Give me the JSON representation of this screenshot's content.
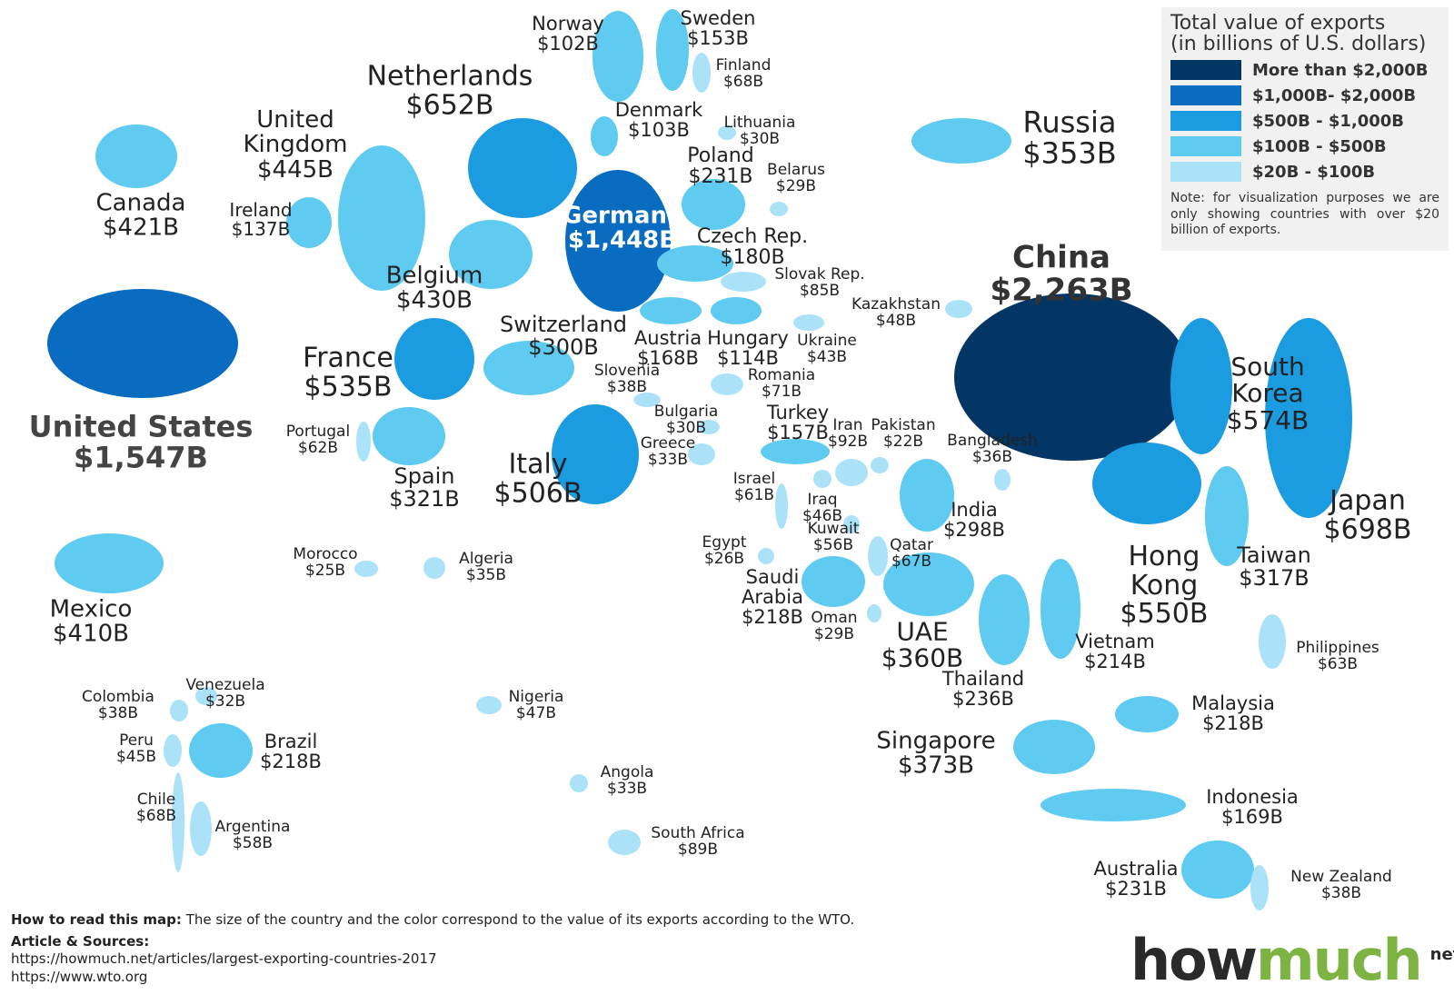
{
  "legend": {
    "title": "Total value of exports",
    "subtitle": "(in billions of U.S. dollars)",
    "items": [
      {
        "label": "More than $2,000B",
        "color": "#033565"
      },
      {
        "label": "$1,000B- $2,000B",
        "color": "#0a6cc0"
      },
      {
        "label": "$500B - $1,000B",
        "color": "#1b9be0"
      },
      {
        "label": "$100B - $500B",
        "color": "#5fcbf1"
      },
      {
        "label": "$20B - $100B",
        "color": "#ace2f8"
      }
    ],
    "note": "Note: for visualization purposes we are only showing countries with over $20 billion of exports."
  },
  "countries": [
    {
      "name": "Norway",
      "value": "$102B",
      "color": "#5fcbf1"
    },
    {
      "name": "Sweden",
      "value": "$153B",
      "color": "#5fcbf1"
    },
    {
      "name": "Finland",
      "value": "$68B",
      "color": "#ace2f8"
    },
    {
      "name": "Netherlands",
      "value": "$652B",
      "color": "#1b9be0"
    },
    {
      "name": "Denmark",
      "value": "$103B",
      "color": "#5fcbf1"
    },
    {
      "name": "Lithuania",
      "value": "$30B",
      "color": "#ace2f8"
    },
    {
      "name": "United Kingdom",
      "value": "$445B",
      "color": "#5fcbf1"
    },
    {
      "name": "Canada",
      "value": "$421B",
      "color": "#5fcbf1"
    },
    {
      "name": "Ireland",
      "value": "$137B",
      "color": "#5fcbf1"
    },
    {
      "name": "Poland",
      "value": "$231B",
      "color": "#5fcbf1"
    },
    {
      "name": "Belarus",
      "value": "$29B",
      "color": "#ace2f8"
    },
    {
      "name": "Germany",
      "value": "$1,448B",
      "color": "#0a6cc0"
    },
    {
      "name": "Czech Rep.",
      "value": "$180B",
      "color": "#5fcbf1"
    },
    {
      "name": "Slovak Rep.",
      "value": "$85B",
      "color": "#ace2f8"
    },
    {
      "name": "Belgium",
      "value": "$430B",
      "color": "#5fcbf1"
    },
    {
      "name": "Kazakhstan",
      "value": "$48B",
      "color": "#ace2f8"
    },
    {
      "name": "Russia",
      "value": "$353B",
      "color": "#5fcbf1"
    },
    {
      "name": "China",
      "value": "$2,263B",
      "color": "#033565"
    },
    {
      "name": "United States",
      "value": "$1,547B",
      "color": "#0a6cc0"
    },
    {
      "name": "France",
      "value": "$535B",
      "color": "#1b9be0"
    },
    {
      "name": "Switzerland",
      "value": "$300B",
      "color": "#5fcbf1"
    },
    {
      "name": "Austria",
      "value": "$168B",
      "color": "#5fcbf1"
    },
    {
      "name": "Hungary",
      "value": "$114B",
      "color": "#5fcbf1"
    },
    {
      "name": "Ukraine",
      "value": "$43B",
      "color": "#ace2f8"
    },
    {
      "name": "Slovenia",
      "value": "$38B",
      "color": "#ace2f8"
    },
    {
      "name": "Romania",
      "value": "$71B",
      "color": "#ace2f8"
    },
    {
      "name": "Bulgaria",
      "value": "$30B",
      "color": "#ace2f8"
    },
    {
      "name": "Turkey",
      "value": "$157B",
      "color": "#5fcbf1"
    },
    {
      "name": "Iran",
      "value": "$92B",
      "color": "#ace2f8"
    },
    {
      "name": "Pakistan",
      "value": "$22B",
      "color": "#ace2f8"
    },
    {
      "name": "Bangladesh",
      "value": "$36B",
      "color": "#ace2f8"
    },
    {
      "name": "South Korea",
      "value": "$574B",
      "color": "#1b9be0"
    },
    {
      "name": "Japan",
      "value": "$698B",
      "color": "#1b9be0"
    },
    {
      "name": "Portugal",
      "value": "$62B",
      "color": "#ace2f8"
    },
    {
      "name": "Spain",
      "value": "$321B",
      "color": "#5fcbf1"
    },
    {
      "name": "Italy",
      "value": "$506B",
      "color": "#1b9be0"
    },
    {
      "name": "Greece",
      "value": "$33B",
      "color": "#ace2f8"
    },
    {
      "name": "Israel",
      "value": "$61B",
      "color": "#ace2f8"
    },
    {
      "name": "Iraq",
      "value": "$46B",
      "color": "#ace2f8"
    },
    {
      "name": "Kuwait",
      "value": "$56B",
      "color": "#ace2f8"
    },
    {
      "name": "India",
      "value": "$298B",
      "color": "#5fcbf1"
    },
    {
      "name": "Hong Kong",
      "value": "$550B",
      "color": "#1b9be0"
    },
    {
      "name": "Taiwan",
      "value": "$317B",
      "color": "#5fcbf1"
    },
    {
      "name": "Egypt",
      "value": "$26B",
      "color": "#ace2f8"
    },
    {
      "name": "Qatar",
      "value": "$67B",
      "color": "#ace2f8"
    },
    {
      "name": "Saudi Arabia",
      "value": "$218B",
      "color": "#5fcbf1"
    },
    {
      "name": "UAE",
      "value": "$360B",
      "color": "#5fcbf1"
    },
    {
      "name": "Morocco",
      "value": "$25B",
      "color": "#ace2f8"
    },
    {
      "name": "Algeria",
      "value": "$35B",
      "color": "#ace2f8"
    },
    {
      "name": "Mexico",
      "value": "$410B",
      "color": "#5fcbf1"
    },
    {
      "name": "Oman",
      "value": "$29B",
      "color": "#ace2f8"
    },
    {
      "name": "Thailand",
      "value": "$236B",
      "color": "#5fcbf1"
    },
    {
      "name": "Vietnam",
      "value": "$214B",
      "color": "#5fcbf1"
    },
    {
      "name": "Philippines",
      "value": "$63B",
      "color": "#ace2f8"
    },
    {
      "name": "Colombia",
      "value": "$38B",
      "color": "#ace2f8"
    },
    {
      "name": "Venezuela",
      "value": "$32B",
      "color": "#ace2f8"
    },
    {
      "name": "Nigeria",
      "value": "$47B",
      "color": "#ace2f8"
    },
    {
      "name": "Malaysia",
      "value": "$218B",
      "color": "#5fcbf1"
    },
    {
      "name": "Singapore",
      "value": "$373B",
      "color": "#5fcbf1"
    },
    {
      "name": "Peru",
      "value": "$45B",
      "color": "#ace2f8"
    },
    {
      "name": "Brazil",
      "value": "$218B",
      "color": "#5fcbf1"
    },
    {
      "name": "Chile",
      "value": "$68B",
      "color": "#ace2f8"
    },
    {
      "name": "Argentina",
      "value": "$58B",
      "color": "#ace2f8"
    },
    {
      "name": "Angola",
      "value": "$33B",
      "color": "#ace2f8"
    },
    {
      "name": "South Africa",
      "value": "$89B",
      "color": "#ace2f8"
    },
    {
      "name": "Indonesia",
      "value": "$169B",
      "color": "#5fcbf1"
    },
    {
      "name": "Australia",
      "value": "$231B",
      "color": "#5fcbf1"
    },
    {
      "name": "New Zealand",
      "value": "$38B",
      "color": "#ace2f8"
    }
  ],
  "footer": {
    "how_to_label": "How to read this map:",
    "how_to_text": "The size of the country and the color correspond to the value of its exports according to the WTO.",
    "sources_label": "Article & Sources:",
    "urls": [
      "https://howmuch.net/articles/largest-exporting-countries-2017",
      "https://www.wto.org"
    ]
  },
  "logo": {
    "how": "how",
    "much": "much",
    "net": "net"
  }
}
